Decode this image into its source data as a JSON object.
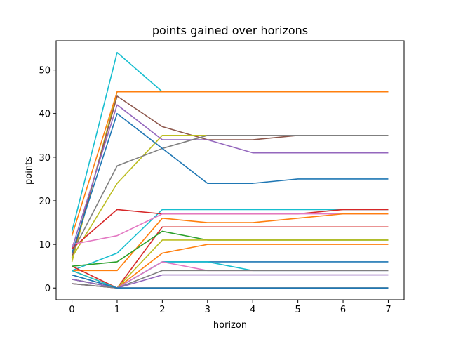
{
  "chart_data": {
    "type": "line",
    "title": "points gained over horizons",
    "xlabel": "horizon",
    "ylabel": "points",
    "x": [
      0,
      1,
      2,
      3,
      4,
      5,
      6,
      7
    ],
    "xlim": [
      -0.35,
      7.35
    ],
    "ylim": [
      -2.7,
      56.7
    ],
    "xticks": [
      "0",
      "1",
      "2",
      "3",
      "4",
      "5",
      "6",
      "7"
    ],
    "yticks": [
      0,
      10,
      20,
      30,
      40,
      50
    ],
    "grid": false,
    "series": [
      {
        "color": "#17becf",
        "values": [
          13,
          54,
          45,
          45,
          45,
          45,
          45,
          45
        ]
      },
      {
        "color": "#bcbd22",
        "values": [
          6,
          45,
          45,
          45,
          45,
          45,
          45,
          45
        ]
      },
      {
        "color": "#ff7f0e",
        "values": [
          12,
          45,
          45,
          45,
          45,
          45,
          45,
          45
        ]
      },
      {
        "color": "#8c564b",
        "values": [
          7,
          44,
          37,
          34,
          34,
          35,
          35,
          35
        ]
      },
      {
        "color": "#bcbd22",
        "values": [
          7,
          24,
          35,
          35,
          35,
          35,
          35,
          35
        ]
      },
      {
        "color": "#9467bd",
        "values": [
          9,
          42,
          34,
          34,
          31,
          31,
          31,
          31
        ]
      },
      {
        "color": "#7f7f7f",
        "values": [
          8,
          28,
          32,
          35,
          35,
          35,
          35,
          35
        ]
      },
      {
        "color": "#1f77b4",
        "values": [
          8,
          40,
          32,
          24,
          24,
          25,
          25,
          25
        ]
      },
      {
        "color": "#17becf",
        "values": [
          4,
          8,
          18,
          18,
          18,
          18,
          18,
          18
        ]
      },
      {
        "color": "#d62728",
        "values": [
          9,
          18,
          17,
          17,
          17,
          17,
          18,
          18
        ]
      },
      {
        "color": "#e377c2",
        "values": [
          10,
          12,
          17,
          17,
          17,
          17,
          17,
          17
        ]
      },
      {
        "color": "#ff7f0e",
        "values": [
          4,
          4,
          16,
          15,
          15,
          16,
          17,
          17
        ]
      },
      {
        "color": "#d62728",
        "values": [
          5,
          0,
          14,
          14,
          14,
          14,
          14,
          14
        ]
      },
      {
        "color": "#2ca02c",
        "values": [
          5,
          6,
          13,
          11,
          11,
          11,
          11,
          11
        ]
      },
      {
        "color": "#bcbd22",
        "values": [
          4,
          0,
          11,
          11,
          11,
          11,
          11,
          11
        ]
      },
      {
        "color": "#ff7f0e",
        "values": [
          4,
          0,
          8,
          10,
          10,
          10,
          10,
          10
        ]
      },
      {
        "color": "#1f77b4",
        "values": [
          3,
          0,
          6,
          6,
          6,
          6,
          6,
          6
        ]
      },
      {
        "color": "#17becf",
        "values": [
          4,
          0,
          6,
          6,
          4,
          4,
          4,
          4
        ]
      },
      {
        "color": "#e377c2",
        "values": [
          2,
          0,
          6,
          4,
          4,
          4,
          4,
          4
        ]
      },
      {
        "color": "#7f7f7f",
        "values": [
          2,
          0,
          4,
          4,
          4,
          4,
          4,
          4
        ]
      },
      {
        "color": "#9467bd",
        "values": [
          1,
          0,
          3,
          3,
          3,
          3,
          3,
          3
        ]
      },
      {
        "color": "#8c564b",
        "values": [
          1,
          0,
          0,
          0,
          0,
          0,
          0,
          0
        ]
      },
      {
        "color": "#2ca02c",
        "values": [
          2,
          0,
          0,
          0,
          0,
          0,
          0,
          0
        ]
      },
      {
        "color": "#9467bd",
        "values": [
          2,
          0,
          0,
          0,
          0,
          0,
          0,
          0
        ]
      },
      {
        "color": "#7f7f7f",
        "values": [
          1,
          0,
          0,
          0,
          0,
          0,
          0,
          0
        ]
      },
      {
        "color": "#1f77b4",
        "values": [
          3,
          0,
          0,
          0,
          0,
          0,
          0,
          0
        ]
      }
    ]
  }
}
